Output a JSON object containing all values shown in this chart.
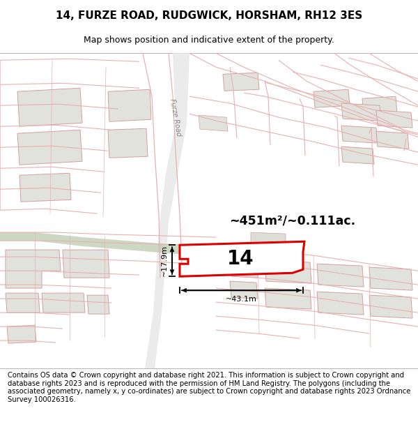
{
  "title": "14, FURZE ROAD, RUDGWICK, HORSHAM, RH12 3ES",
  "subtitle": "Map shows position and indicative extent of the property.",
  "footer": "Contains OS data © Crown copyright and database right 2021. This information is subject to Crown copyright and database rights 2023 and is reproduced with the permission of HM Land Registry. The polygons (including the associated geometry, namely x, y co-ordinates) are subject to Crown copyright and database rights 2023 Ordnance Survey 100026316.",
  "area_text": "~451m²/~0.111ac.",
  "width_label": "~43.1m",
  "height_label": "~17.9m",
  "property_number": "14",
  "map_bg": "#f8f8f5",
  "highlight_color": "#dd0000",
  "building_fill": "#e2e2dc",
  "building_outline": "#d4a0a0",
  "road_line_color": "#e8b0b0",
  "green_color": "#b8c8a8",
  "road_fill": "#e8e8e0",
  "title_fontsize": 11,
  "subtitle_fontsize": 9,
  "footer_fontsize": 7.2,
  "furze_road_label": "Furze Road"
}
